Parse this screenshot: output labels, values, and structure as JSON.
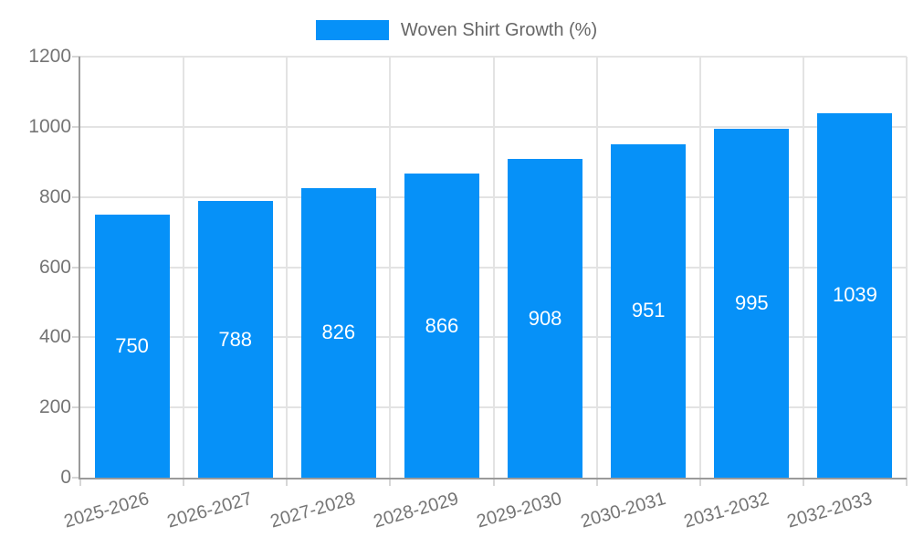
{
  "legend": {
    "label": "Woven Shirt Growth (%)"
  },
  "colors": {
    "bar": "#0691f8",
    "grid": "#e3e3e3",
    "tick": "#d6d6d6",
    "axis": "#9a9a9a",
    "tick_text": "#757575",
    "legend_text": "#666666",
    "value_text": "#ffffff",
    "background": "#ffffff"
  },
  "chart_data": {
    "type": "bar",
    "title": "",
    "legend": "Woven Shirt Growth (%)",
    "legend_position": "top-center",
    "categories": [
      "2025-2026",
      "2026-2027",
      "2027-2028",
      "2028-2029",
      "2029-2030",
      "2030-2031",
      "2031-2032",
      "2032-2033"
    ],
    "values": [
      750,
      788,
      826,
      866,
      908,
      951,
      995,
      1039
    ],
    "value_labels": "inside-center-white",
    "xlabel": "",
    "ylabel": "",
    "ylim": [
      0,
      1200
    ],
    "yticks": [
      0,
      200,
      400,
      600,
      800,
      1000,
      1200
    ],
    "grid": true,
    "x_label_rotation_deg": -16
  }
}
